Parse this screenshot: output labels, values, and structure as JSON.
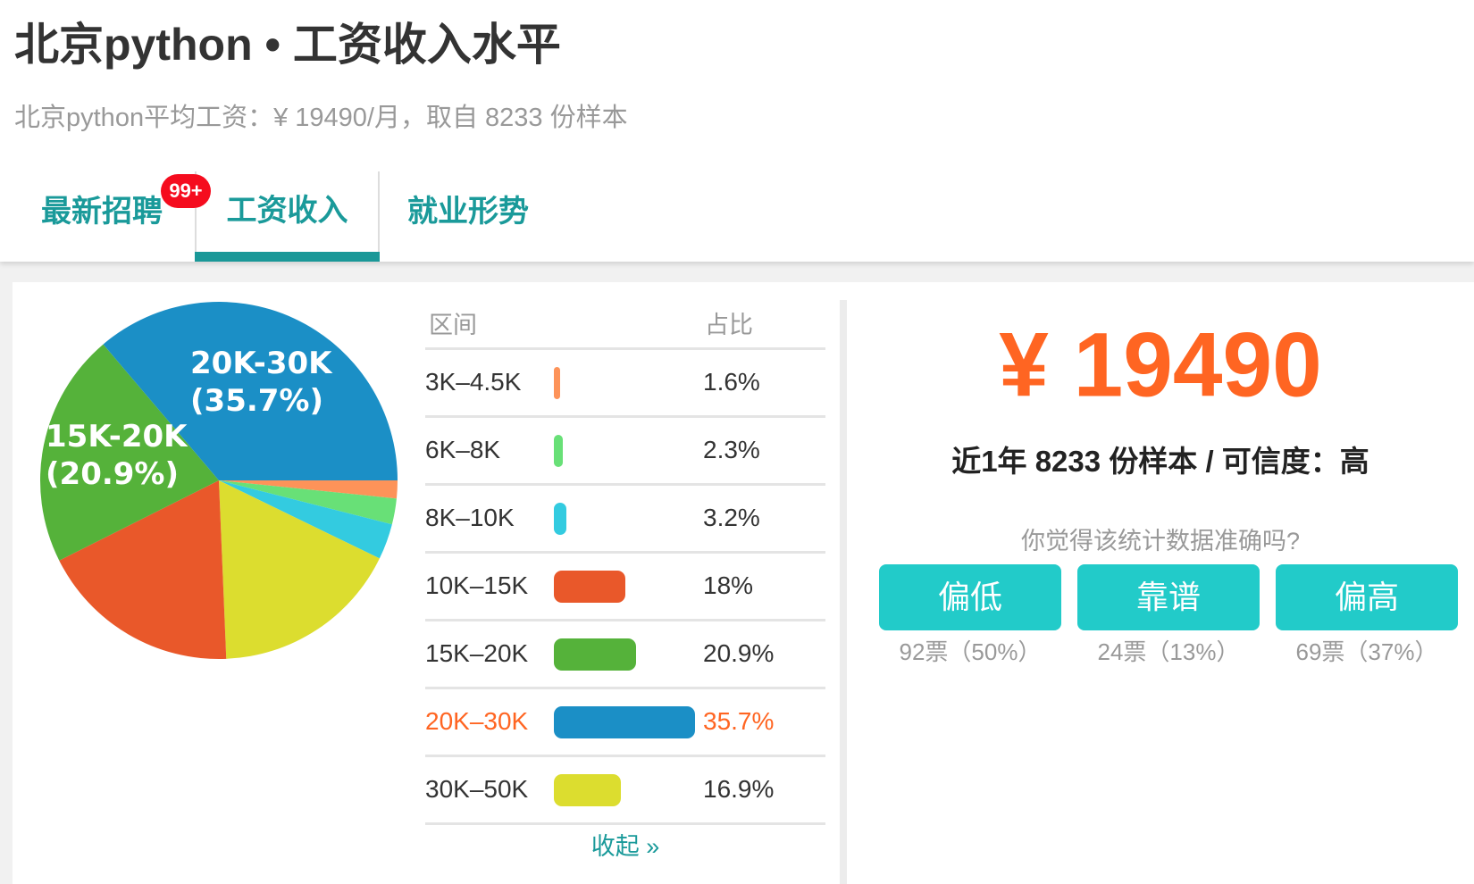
{
  "header": {
    "title": "北京python • 工资收入水平",
    "subtitle": "北京python平均工资：¥ 19490/月，取自 8233 份样本"
  },
  "tabs": [
    {
      "label": "最新招聘",
      "badge": "99+"
    },
    {
      "label": "工资收入",
      "active": true
    },
    {
      "label": "就业形势"
    }
  ],
  "table": {
    "col_range": "区间",
    "col_ratio": "占比",
    "rows": [
      {
        "range": "3K–4.5K",
        "pct": "1.6%"
      },
      {
        "range": "6K–8K",
        "pct": "2.3%"
      },
      {
        "range": "8K–10K",
        "pct": "3.2%"
      },
      {
        "range": "10K–15K",
        "pct": "18%"
      },
      {
        "range": "15K–20K",
        "pct": "20.9%"
      },
      {
        "range": "20K–30K",
        "pct": "35.7%",
        "highlight": true
      },
      {
        "range": "30K–50K",
        "pct": "16.9%"
      }
    ],
    "collapse_label": "收起 »"
  },
  "chart_data": {
    "type": "pie",
    "categories": [
      "3K-4.5K",
      "6K-8K",
      "8K-10K",
      "10K-15K",
      "15K-20K",
      "20K-30K",
      "30K-50K"
    ],
    "values": [
      1.6,
      2.3,
      3.2,
      18,
      20.9,
      35.7,
      16.9
    ],
    "colors": [
      "#fd9359",
      "#68e077",
      "#33cbe0",
      "#e9582a",
      "#55b23a",
      "#1b8fc6",
      "#dcdd2f"
    ],
    "slice_labels": [
      {
        "name": "20K-30K",
        "value": "(35.7%)"
      },
      {
        "name": "15K-20K",
        "value": "(20.9%)"
      }
    ]
  },
  "summary": {
    "salary": "¥ 19490",
    "sample_line": "近1年 8233 份样本 / 可信度：高",
    "question": "你觉得该统计数据准确吗?",
    "vote_buttons": [
      {
        "label": "偏低",
        "votes": "92票（50%）"
      },
      {
        "label": "靠谱",
        "votes": "24票（13%）"
      },
      {
        "label": "偏高",
        "votes": "69票（37%）"
      }
    ]
  },
  "colors": {
    "accent": "#1a9898",
    "highlight": "#ff6522",
    "button": "#22cbc9",
    "badge": "#f50c1e"
  }
}
